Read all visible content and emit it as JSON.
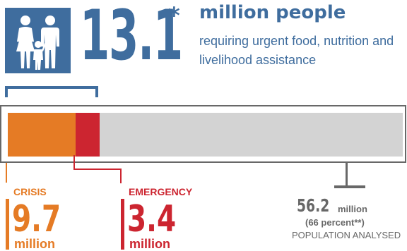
{
  "header": {
    "number": "13.1",
    "asterisk": "*",
    "headline": "million people",
    "subline": "requiring urgent food, nutrition and livelihood assistance"
  },
  "icons": {
    "people": "family-icon"
  },
  "bar": {
    "total": 56.2,
    "crisis_value": 9.7,
    "emergency_value": 3.4
  },
  "categories": {
    "crisis": {
      "label": "CRISIS",
      "value": "9.7",
      "unit": "million"
    },
    "emergency": {
      "label": "EMERGENCY",
      "value": "3.4",
      "unit": "million"
    }
  },
  "population": {
    "value": "56.2",
    "unit": "million",
    "percent": "(66 percent**)",
    "label": "POPULATION ANALYSED"
  },
  "colors": {
    "blue": "#3f6d9e",
    "crisis": "#e57b25",
    "emergency": "#cc2530",
    "track": "#d3d3d3",
    "gray": "#686868"
  }
}
